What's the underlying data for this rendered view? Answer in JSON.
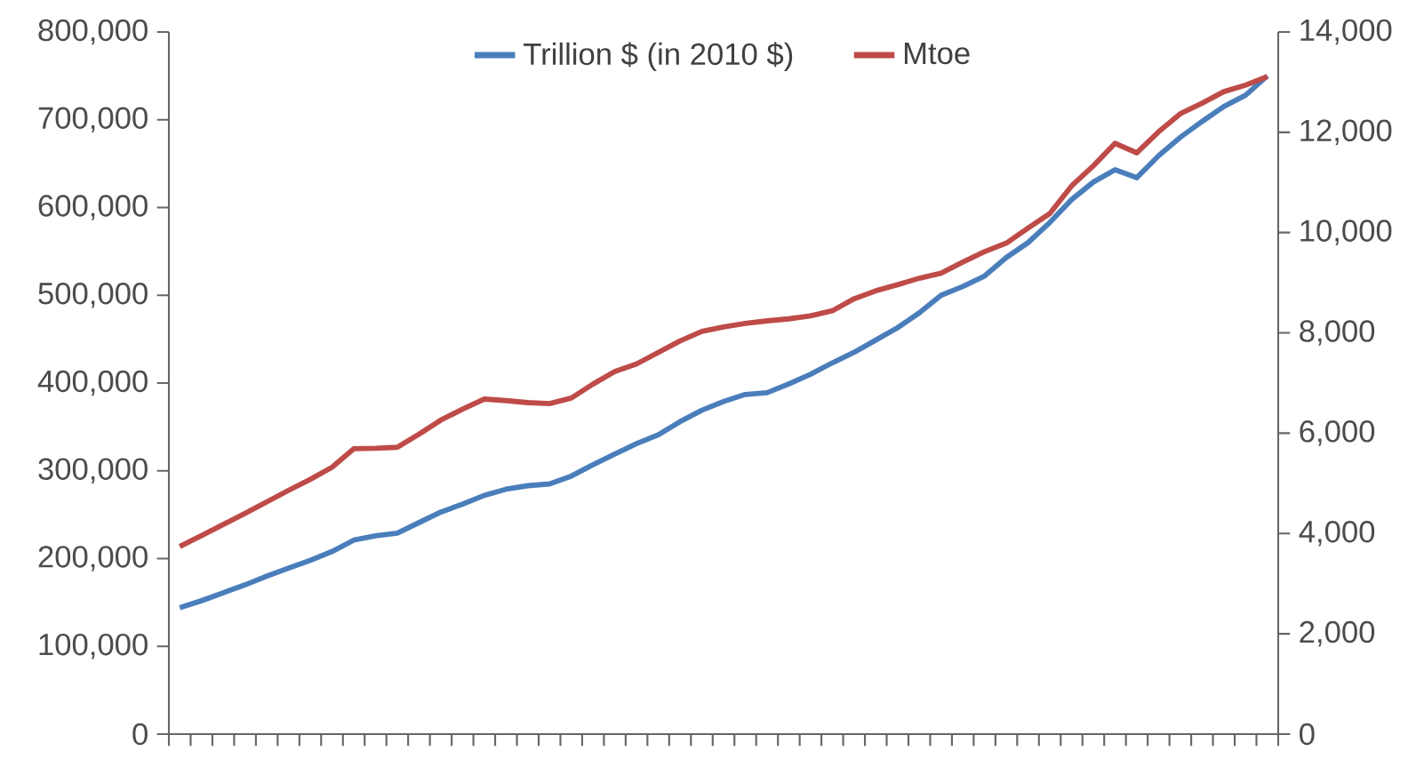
{
  "chart_data": {
    "type": "line",
    "categories": [
      null,
      null,
      null,
      null,
      null,
      null,
      null,
      null,
      null,
      null,
      null,
      null,
      null,
      null,
      null,
      null,
      null,
      null,
      null,
      null,
      null,
      null,
      null,
      null,
      null,
      null,
      null,
      null,
      null,
      null,
      null,
      null,
      null,
      null,
      null,
      null,
      null,
      null,
      null,
      null,
      null,
      null,
      null,
      null,
      null,
      null,
      null,
      null,
      null,
      null,
      null
    ],
    "series": [
      {
        "name": "Trillion $ (in 2010 $)",
        "color": "#4a7ebb",
        "axis": "y",
        "values": [
          144000,
          152000,
          161000,
          170000,
          180000,
          189000,
          198000,
          208000,
          221000,
          226000,
          229000,
          241000,
          253000,
          262000,
          272000,
          279000,
          283000,
          285000,
          294000,
          307000,
          319000,
          331000,
          341000,
          356000,
          369000,
          379000,
          387000,
          389000,
          399000,
          410000,
          423000,
          435000,
          449000,
          463000,
          480000,
          500000,
          510000,
          522000,
          543000,
          560000,
          583000,
          609000,
          629000,
          643000,
          634000,
          659000,
          680000,
          698000,
          715000,
          728000,
          750000
        ]
      },
      {
        "name": "Mtoe",
        "color": "#be4b48",
        "axis": "y2",
        "values": [
          3740,
          3960,
          4180,
          4400,
          4630,
          4860,
          5080,
          5320,
          5690,
          5700,
          5720,
          5980,
          6260,
          6480,
          6680,
          6650,
          6610,
          6590,
          6700,
          6980,
          7230,
          7380,
          7610,
          7840,
          8030,
          8120,
          8190,
          8240,
          8280,
          8340,
          8440,
          8680,
          8840,
          8960,
          9090,
          9190,
          9410,
          9620,
          9790,
          10090,
          10380,
          10930,
          11330,
          11780,
          11590,
          12010,
          12370,
          12580,
          12810,
          12940,
          13110
        ]
      }
    ],
    "ylim": [
      0,
      800000
    ],
    "yticks": [
      0,
      {
        "value": 100000,
        "label": "100,000"
      },
      {
        "value": 200000,
        "label": "200,000"
      },
      {
        "value": 300000,
        "label": "300,000"
      },
      {
        "value": 400000,
        "label": "400,000"
      },
      {
        "value": 500000,
        "label": "500,000"
      },
      {
        "value": 600000,
        "label": "600,000"
      },
      {
        "value": 700000,
        "label": "700,000"
      },
      {
        "value": 800000,
        "label": "800,000"
      }
    ],
    "y2lim": [
      0,
      14000
    ],
    "y2ticks": [
      0,
      {
        "value": 2000,
        "label": "2,000"
      },
      {
        "value": 4000,
        "label": "4,000"
      },
      {
        "value": 6000,
        "label": "6,000"
      },
      {
        "value": 8000,
        "label": "8,000"
      },
      {
        "value": 10000,
        "label": "10,000"
      },
      {
        "value": 12000,
        "label": "12,000"
      },
      {
        "value": 14000,
        "label": "14,000"
      }
    ],
    "legend": "top",
    "tick_labels": "y"
  }
}
